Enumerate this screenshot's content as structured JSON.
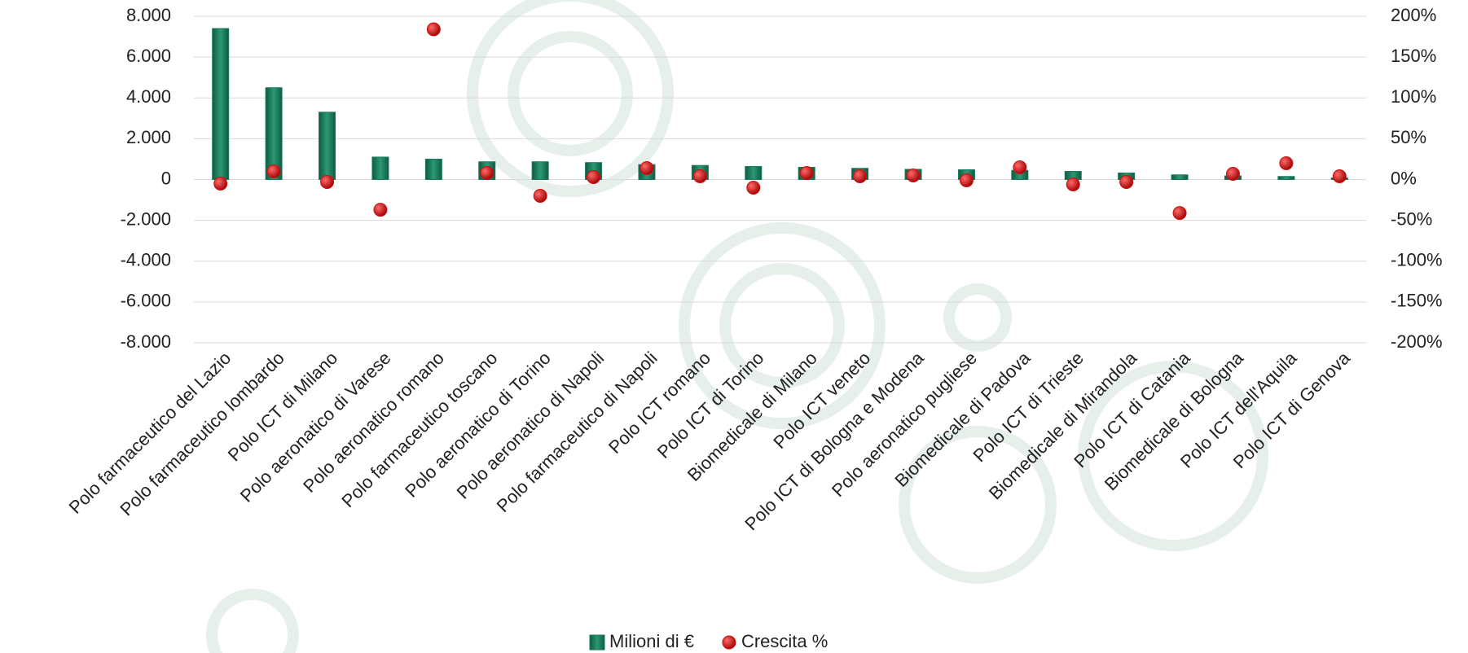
{
  "chart_data": {
    "type": "bar_scatter",
    "categories": [
      "Polo farmaceutico del Lazio",
      "Polo farmaceutico lombardo",
      "Polo ICT di Milano",
      "Polo aeronatico di Varese",
      "Polo aeronatico  romano",
      "Polo farmaceutico toscano",
      "Polo aeronatico di Torino",
      "Polo aeronatico di Napoli",
      "Polo farmaceutico di Napoli",
      "Polo ICT romano",
      "Polo ICT di Torino",
      "Biomedicale di Milano",
      "Polo ICT veneto",
      "Polo ICT di Bologna e Modena",
      "Polo aeronatico pugliese",
      "Biomedicale di Padova",
      "Polo ICT di Trieste",
      "Biomedicale di Mirandola",
      "Polo ICT di Catania",
      "Biomedicale di Bologna",
      "Polo ICT dell'Aquila",
      "Polo ICT di Genova"
    ],
    "series": [
      {
        "name": "Milioni di €",
        "type": "bar",
        "color": "#1b7a5c",
        "values": [
          7400,
          4500,
          3300,
          1100,
          1000,
          870,
          870,
          830,
          730,
          690,
          640,
          600,
          550,
          500,
          480,
          450,
          400,
          320,
          230,
          180,
          150,
          80
        ]
      },
      {
        "name": "Crescita %",
        "type": "scatter",
        "axis": "y2",
        "color": "#cc1111",
        "values": [
          -5,
          10,
          -3,
          -37,
          184,
          8,
          -20,
          3,
          14,
          4,
          -10,
          8,
          4,
          5,
          -1,
          15,
          -6,
          -3,
          -41,
          7,
          20,
          4
        ]
      }
    ],
    "ylim": [
      -8000,
      8000
    ],
    "yticks": [
      {
        "value": -8000,
        "label": "-8.000"
      },
      {
        "value": -6000,
        "label": "-6.000"
      },
      {
        "value": -4000,
        "label": "-4.000"
      },
      {
        "value": -2000,
        "label": "-2.000"
      },
      0,
      {
        "value": 2000,
        "label": "2.000"
      },
      {
        "value": 4000,
        "label": "4.000"
      },
      {
        "value": 6000,
        "label": "6.000"
      },
      {
        "value": 8000,
        "label": "8.000"
      }
    ],
    "y2lim": [
      -200,
      200
    ],
    "y2ticks": [
      {
        "value": -200,
        "label": "-200%"
      },
      {
        "value": -150,
        "label": "-150%"
      },
      {
        "value": -100,
        "label": "-100%"
      },
      {
        "value": -50,
        "label": "-50%"
      },
      {
        "value": 0,
        "label": "0%"
      },
      {
        "value": 50,
        "label": "50%"
      },
      {
        "value": 100,
        "label": "100%"
      },
      {
        "value": 150,
        "label": "150%"
      },
      {
        "value": 200,
        "label": "200%"
      }
    ],
    "grid": true,
    "legend": "bottom"
  }
}
